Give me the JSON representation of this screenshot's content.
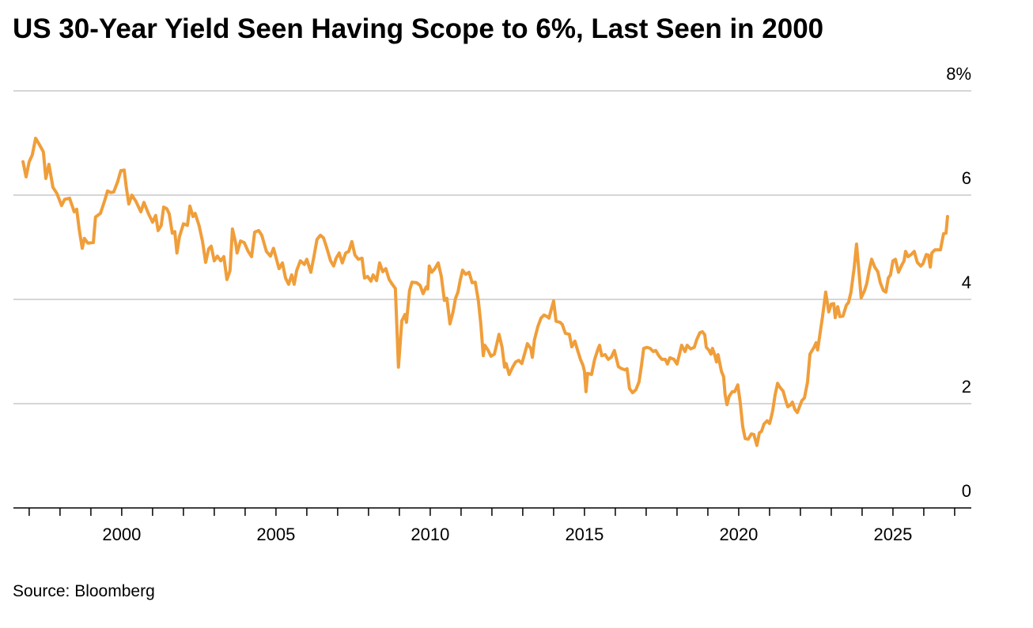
{
  "chart_data": {
    "type": "line",
    "title": "US 30-Year Yield Seen Having Scope to 6%, Last Seen in 2000",
    "source": "Source: Bloomberg",
    "color": "#f09e3a",
    "grid": true,
    "xlim": [
      1996.49,
      2027.54
    ],
    "ylim": [
      0,
      8
    ],
    "xticks": [
      2000,
      2005,
      2010,
      2015,
      2020,
      2025
    ],
    "xminor_ticks": [
      1997,
      1998,
      1999,
      2001,
      2002,
      2003,
      2004,
      2006,
      2007,
      2008,
      2009,
      2011,
      2012,
      2013,
      2014,
      2016,
      2017,
      2018,
      2019,
      2021,
      2022,
      2023,
      2024,
      2026,
      2027
    ],
    "yticks": [
      0,
      2,
      4,
      6,
      {
        "value": 8,
        "label": "8%"
      }
    ],
    "x": [
      1996.8,
      1996.9,
      1997.0,
      1997.1,
      1997.21,
      1997.33,
      1997.46,
      1997.54,
      1997.64,
      1997.77,
      1997.9,
      1998.05,
      1998.15,
      1998.31,
      1998.46,
      1998.54,
      1998.62,
      1998.72,
      1998.79,
      1998.9,
      1999.08,
      1999.15,
      1999.31,
      1999.44,
      1999.54,
      1999.64,
      1999.74,
      1999.87,
      1999.97,
      2000.08,
      2000.15,
      2000.23,
      2000.33,
      2000.46,
      2000.62,
      2000.72,
      2000.87,
      2001.0,
      2001.1,
      2001.18,
      2001.28,
      2001.36,
      2001.46,
      2001.54,
      2001.64,
      2001.72,
      2001.79,
      2001.87,
      2002.0,
      2002.13,
      2002.21,
      2002.31,
      2002.38,
      2002.51,
      2002.62,
      2002.72,
      2002.82,
      2002.9,
      2003.0,
      2003.1,
      2003.21,
      2003.31,
      2003.41,
      2003.51,
      2003.59,
      2003.69,
      2003.74,
      2003.85,
      2003.97,
      2004.1,
      2004.21,
      2004.31,
      2004.44,
      2004.54,
      2004.69,
      2004.82,
      2004.92,
      2005.03,
      2005.1,
      2005.21,
      2005.31,
      2005.41,
      2005.51,
      2005.59,
      2005.67,
      2005.79,
      2005.92,
      2006.0,
      2006.13,
      2006.23,
      2006.33,
      2006.44,
      2006.54,
      2006.64,
      2006.77,
      2006.87,
      2006.95,
      2007.05,
      2007.15,
      2007.26,
      2007.36,
      2007.46,
      2007.56,
      2007.67,
      2007.79,
      2007.87,
      2007.97,
      2008.08,
      2008.15,
      2008.26,
      2008.36,
      2008.46,
      2008.56,
      2008.67,
      2008.77,
      2008.87,
      2008.97,
      2009.08,
      2009.18,
      2009.23,
      2009.33,
      2009.41,
      2009.56,
      2009.67,
      2009.77,
      2009.87,
      2009.92,
      2009.97,
      2010.05,
      2010.15,
      2010.26,
      2010.36,
      2010.46,
      2010.54,
      2010.64,
      2010.74,
      2010.82,
      2010.9,
      2010.97,
      2011.05,
      2011.15,
      2011.26,
      2011.36,
      2011.46,
      2011.56,
      2011.64,
      2011.72,
      2011.77,
      2011.87,
      2011.97,
      2012.08,
      2012.18,
      2012.23,
      2012.33,
      2012.41,
      2012.46,
      2012.56,
      2012.67,
      2012.77,
      2012.87,
      2012.97,
      2013.08,
      2013.15,
      2013.26,
      2013.31,
      2013.38,
      2013.49,
      2013.59,
      2013.69,
      2013.79,
      2013.85,
      2013.92,
      2014.0,
      2014.08,
      2014.21,
      2014.28,
      2014.38,
      2014.51,
      2014.59,
      2014.69,
      2014.79,
      2014.87,
      2014.95,
      2015.0,
      2015.05,
      2015.1,
      2015.23,
      2015.33,
      2015.44,
      2015.49,
      2015.56,
      2015.67,
      2015.77,
      2015.87,
      2015.97,
      2016.1,
      2016.21,
      2016.31,
      2016.38,
      2016.46,
      2016.56,
      2016.67,
      2016.77,
      2016.85,
      2016.92,
      2017.03,
      2017.13,
      2017.23,
      2017.31,
      2017.41,
      2017.51,
      2017.62,
      2017.69,
      2017.77,
      2017.9,
      2018.0,
      2018.08,
      2018.15,
      2018.26,
      2018.33,
      2018.44,
      2018.56,
      2018.64,
      2018.74,
      2018.82,
      2018.9,
      2018.95,
      2019.03,
      2019.1,
      2019.15,
      2019.23,
      2019.28,
      2019.33,
      2019.44,
      2019.51,
      2019.56,
      2019.62,
      2019.69,
      2019.79,
      2019.87,
      2019.97,
      2020.05,
      2020.13,
      2020.21,
      2020.31,
      2020.41,
      2020.49,
      2020.59,
      2020.67,
      2020.74,
      2020.82,
      2020.92,
      2021.0,
      2021.05,
      2021.1,
      2021.18,
      2021.26,
      2021.33,
      2021.44,
      2021.51,
      2021.59,
      2021.67,
      2021.74,
      2021.82,
      2021.9,
      2021.97,
      2022.05,
      2022.13,
      2022.23,
      2022.31,
      2022.44,
      2022.51,
      2022.56,
      2022.64,
      2022.72,
      2022.82,
      2022.92,
      2023.0,
      2023.08,
      2023.13,
      2023.21,
      2023.28,
      2023.38,
      2023.49,
      2023.56,
      2023.64,
      2023.74,
      2023.82,
      2023.9,
      2023.97,
      2024.08,
      2024.15,
      2024.23,
      2024.31,
      2024.41,
      2024.51,
      2024.59,
      2024.69,
      2024.77,
      2024.85,
      2024.92,
      2025.0,
      2025.08,
      2025.18,
      2025.28,
      2025.36,
      2025.41,
      2025.49,
      2025.59,
      2025.69,
      2025.79,
      2025.9,
      2025.97,
      2026.08,
      2026.15,
      2026.21,
      2026.26,
      2026.36,
      2026.46,
      2026.54,
      2026.64,
      2026.72,
      2026.77
    ],
    "values": [
      6.64,
      6.35,
      6.64,
      6.77,
      7.09,
      6.97,
      6.83,
      6.32,
      6.59,
      6.15,
      6.03,
      5.8,
      5.92,
      5.94,
      5.68,
      5.73,
      5.35,
      4.98,
      5.17,
      5.08,
      5.09,
      5.58,
      5.65,
      5.88,
      6.08,
      6.05,
      6.06,
      6.26,
      6.47,
      6.48,
      6.14,
      5.83,
      6.0,
      5.88,
      5.68,
      5.86,
      5.64,
      5.48,
      5.61,
      5.32,
      5.42,
      5.77,
      5.74,
      5.64,
      5.27,
      5.3,
      4.89,
      5.2,
      5.45,
      5.42,
      5.79,
      5.59,
      5.65,
      5.41,
      5.11,
      4.71,
      4.97,
      5.02,
      4.74,
      4.83,
      4.74,
      4.82,
      4.38,
      4.55,
      5.35,
      5.09,
      4.89,
      5.12,
      5.09,
      4.92,
      4.82,
      5.29,
      5.32,
      5.23,
      4.92,
      4.83,
      4.98,
      4.74,
      4.59,
      4.7,
      4.41,
      4.29,
      4.47,
      4.29,
      4.55,
      4.74,
      4.67,
      4.77,
      4.52,
      4.82,
      5.15,
      5.23,
      5.18,
      5.0,
      4.74,
      4.64,
      4.79,
      4.89,
      4.7,
      4.89,
      4.92,
      5.11,
      4.85,
      4.77,
      4.79,
      4.41,
      4.44,
      4.35,
      4.47,
      4.36,
      4.7,
      4.53,
      4.59,
      4.38,
      4.29,
      4.21,
      2.7,
      3.59,
      3.71,
      3.56,
      4.17,
      4.33,
      4.32,
      4.27,
      4.11,
      4.24,
      4.2,
      4.64,
      4.52,
      4.59,
      4.7,
      4.44,
      3.98,
      4.02,
      3.53,
      3.76,
      4.02,
      4.14,
      4.36,
      4.56,
      4.48,
      4.52,
      4.32,
      4.33,
      3.98,
      3.53,
      2.92,
      3.12,
      3.03,
      2.91,
      2.95,
      3.2,
      3.33,
      3.08,
      2.7,
      2.77,
      2.56,
      2.7,
      2.8,
      2.83,
      2.77,
      3.0,
      3.15,
      3.06,
      2.89,
      3.23,
      3.48,
      3.64,
      3.7,
      3.67,
      3.64,
      3.8,
      3.97,
      3.58,
      3.56,
      3.52,
      3.35,
      3.33,
      3.09,
      3.2,
      3.0,
      2.85,
      2.74,
      2.62,
      2.23,
      2.58,
      2.56,
      2.85,
      3.05,
      3.12,
      2.92,
      2.94,
      2.85,
      2.89,
      3.02,
      2.71,
      2.67,
      2.65,
      2.67,
      2.29,
      2.21,
      2.27,
      2.42,
      2.74,
      3.06,
      3.08,
      3.06,
      3.0,
      3.02,
      2.92,
      2.85,
      2.85,
      2.76,
      2.88,
      2.85,
      2.76,
      2.95,
      3.12,
      3.0,
      3.12,
      3.05,
      3.08,
      3.23,
      3.36,
      3.38,
      3.32,
      3.08,
      3.03,
      2.95,
      3.06,
      2.92,
      2.8,
      2.94,
      2.62,
      2.52,
      2.17,
      1.98,
      2.14,
      2.23,
      2.23,
      2.36,
      2.02,
      1.56,
      1.33,
      1.32,
      1.42,
      1.41,
      1.2,
      1.44,
      1.47,
      1.61,
      1.67,
      1.62,
      1.73,
      1.86,
      2.17,
      2.39,
      2.32,
      2.24,
      2.09,
      1.94,
      1.97,
      2.03,
      1.89,
      1.83,
      1.94,
      2.06,
      2.11,
      2.41,
      2.95,
      3.08,
      3.17,
      3.03,
      3.36,
      3.68,
      4.14,
      3.76,
      3.91,
      3.92,
      3.65,
      3.86,
      3.67,
      3.68,
      3.89,
      3.94,
      4.14,
      4.59,
      5.06,
      4.52,
      4.03,
      4.17,
      4.3,
      4.56,
      4.77,
      4.62,
      4.53,
      4.32,
      4.17,
      4.14,
      4.41,
      4.47,
      4.74,
      4.77,
      4.52,
      4.65,
      4.74,
      4.92,
      4.82,
      4.86,
      4.92,
      4.71,
      4.64,
      4.68,
      4.86,
      4.85,
      4.62,
      4.89,
      4.95,
      4.95,
      4.95,
      5.26,
      5.27,
      5.59
    ]
  }
}
